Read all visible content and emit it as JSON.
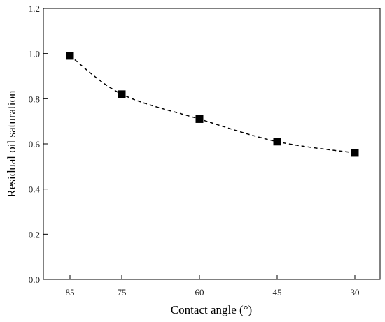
{
  "chart_data": {
    "type": "line",
    "title": "",
    "xlabel": "Contact angle (°)",
    "ylabel": "Residual oil saturation",
    "categories": [
      "85",
      "75",
      "60",
      "45",
      "30"
    ],
    "series": [
      {
        "values": [
          0.99,
          0.82,
          0.71,
          0.61,
          0.56
        ]
      }
    ],
    "ylim": [
      0.0,
      1.2
    ],
    "y_ticks": [
      "0.0",
      "0.2",
      "0.4",
      "0.6",
      "0.8",
      "1.0",
      "1.2"
    ],
    "marker": "square",
    "line_style": "dashed",
    "grid": false,
    "legend": "none",
    "colors": {
      "marker": "#000000",
      "line": "#000000",
      "axis": "#000000"
    }
  }
}
